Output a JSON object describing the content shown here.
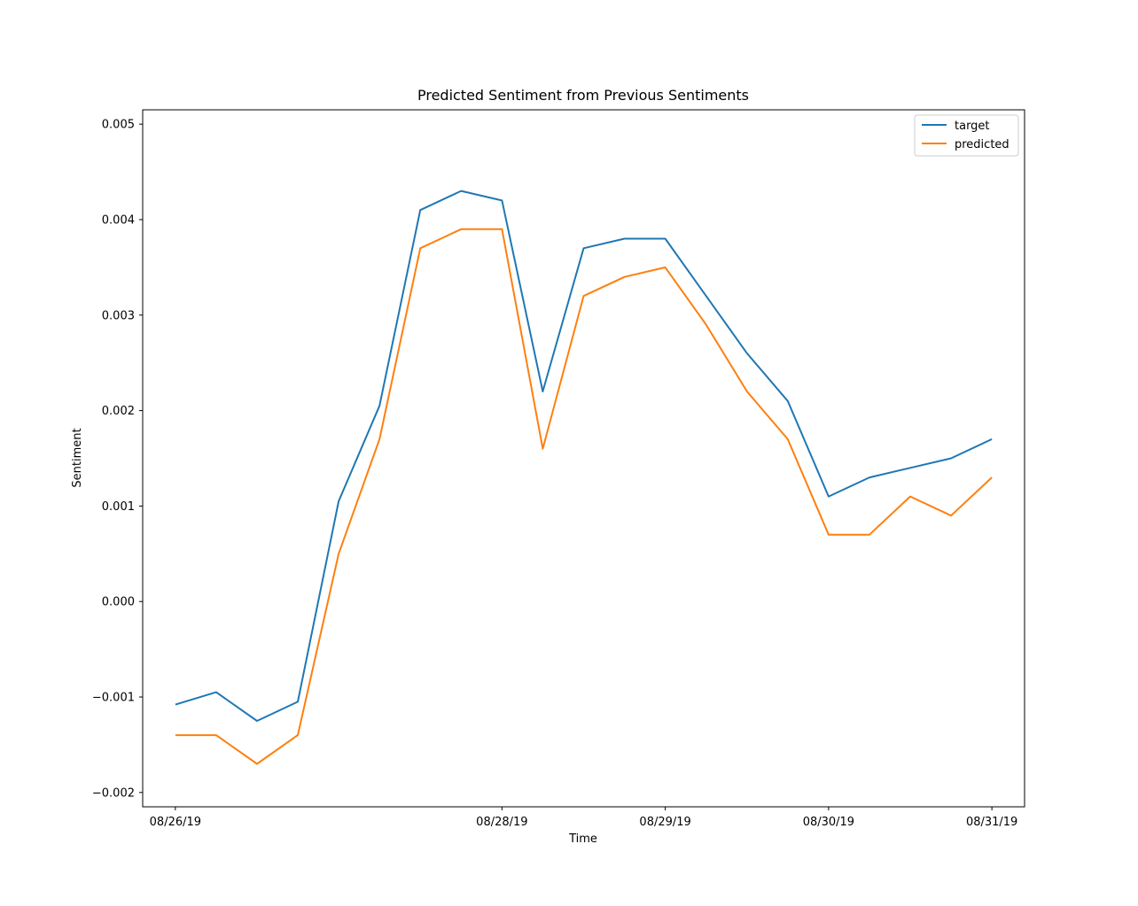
{
  "chart_data": {
    "type": "line",
    "title": "Predicted Sentiment from Previous Sentiments",
    "xlabel": "Time",
    "ylabel": "Sentiment",
    "ylim": [
      -0.00215,
      0.00515
    ],
    "yticks": [
      -0.002,
      -0.001,
      0.0,
      0.001,
      0.002,
      0.003,
      0.004,
      0.005
    ],
    "ytick_labels": [
      "−0.002",
      "−0.001",
      "0.000",
      "0.001",
      "0.002",
      "0.003",
      "0.004",
      "0.005"
    ],
    "xticks": [
      "2019-08-26",
      "2019-08-28",
      "2019-08-29",
      "2019-08-30",
      "2019-08-31"
    ],
    "xtick_labels": [
      "08/26/19",
      "08/28/19",
      "08/29/19",
      "08/30/19",
      "08/31/19"
    ],
    "xlim": [
      "2019-08-25 19:12",
      "2019-08-31 04:48"
    ],
    "grid": false,
    "legend": "top-right",
    "x": [
      "2019-08-26 00:00",
      "2019-08-26 06:00",
      "2019-08-26 12:00",
      "2019-08-26 18:00",
      "2019-08-27 00:00",
      "2019-08-27 06:00",
      "2019-08-27 12:00",
      "2019-08-27 18:00",
      "2019-08-28 00:00",
      "2019-08-28 06:00",
      "2019-08-28 12:00",
      "2019-08-28 18:00",
      "2019-08-29 00:00",
      "2019-08-29 06:00",
      "2019-08-29 12:00",
      "2019-08-29 18:00",
      "2019-08-30 00:00",
      "2019-08-30 06:00",
      "2019-08-30 12:00",
      "2019-08-30 18:00",
      "2019-08-31 00:00"
    ],
    "series": [
      {
        "name": "target",
        "color": "#1f77b4",
        "values": [
          -0.00108,
          -0.00095,
          -0.00125,
          -0.00105,
          0.00105,
          0.00205,
          0.0041,
          0.0043,
          0.0042,
          0.0022,
          0.0037,
          0.0038,
          0.0038,
          0.0032,
          0.0026,
          0.0021,
          0.0011,
          0.0013,
          0.0014,
          0.0015,
          0.0017
        ]
      },
      {
        "name": "predicted",
        "color": "#ff7f0e",
        "values": [
          -0.0014,
          -0.0014,
          -0.0017,
          -0.0014,
          0.0005,
          0.0017,
          0.0037,
          0.0039,
          0.0039,
          0.0016,
          0.0032,
          0.0034,
          0.0035,
          0.0029,
          0.0022,
          0.0017,
          0.0007,
          0.0007,
          0.0011,
          0.0009,
          0.0013
        ]
      }
    ]
  }
}
